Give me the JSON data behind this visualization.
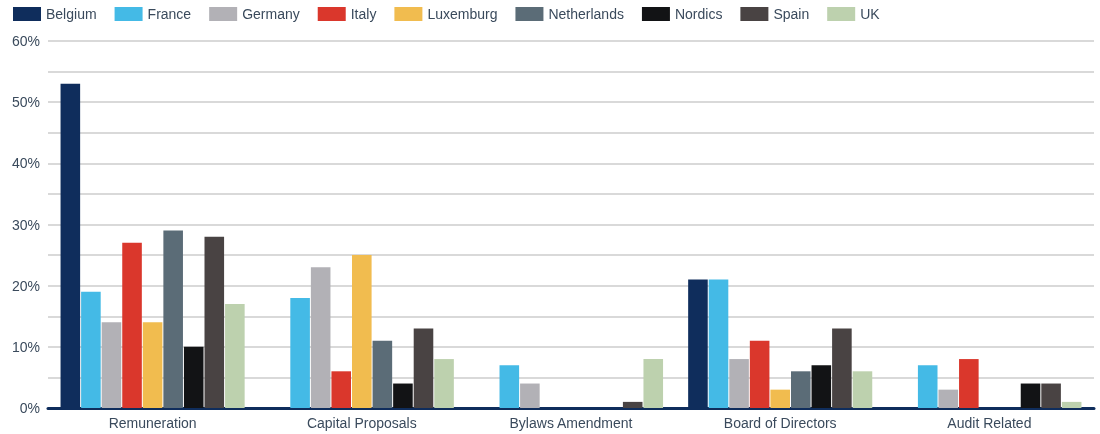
{
  "chart_data": {
    "type": "bar",
    "categories": [
      "Remuneration",
      "Capital Proposals",
      "Bylaws Amendment",
      "Board of Directors",
      "Audit Related"
    ],
    "series": [
      {
        "name": "Belgium",
        "color": "#0f2d5c",
        "values": [
          53,
          null,
          null,
          21,
          null
        ]
      },
      {
        "name": "France",
        "color": "#44bae6",
        "values": [
          19,
          18,
          7,
          21,
          7
        ]
      },
      {
        "name": "Germany",
        "color": "#b2b1b6",
        "values": [
          14,
          23,
          4,
          8,
          3
        ]
      },
      {
        "name": "Italy",
        "color": "#da372c",
        "values": [
          27,
          6,
          null,
          11,
          8
        ]
      },
      {
        "name": "Luxemburg",
        "color": "#f1bc4f",
        "values": [
          14,
          25,
          null,
          3,
          null
        ]
      },
      {
        "name": "Netherlands",
        "color": "#5b6c77",
        "values": [
          29,
          11,
          null,
          6,
          null
        ]
      },
      {
        "name": "Nordics",
        "color": "#121315",
        "values": [
          10,
          4,
          null,
          7,
          4
        ]
      },
      {
        "name": "Spain",
        "color": "#494343",
        "values": [
          28,
          13,
          1,
          13,
          4
        ]
      },
      {
        "name": "UK",
        "color": "#bdd1ae",
        "values": [
          17,
          8,
          8,
          6,
          1
        ]
      }
    ],
    "ylim": [
      0,
      60
    ],
    "yticks": [
      {
        "value": 0,
        "label": "0%"
      },
      {
        "value": 5,
        "label": null
      },
      {
        "value": 10,
        "label": "10%"
      },
      {
        "value": 15,
        "label": null
      },
      {
        "value": 20,
        "label": "20%"
      },
      {
        "value": 25,
        "label": null
      },
      {
        "value": 30,
        "label": "30%"
      },
      {
        "value": 35,
        "label": null
      },
      {
        "value": 40,
        "label": "40%"
      },
      {
        "value": 45,
        "label": null
      },
      {
        "value": 50,
        "label": "50%"
      },
      {
        "value": 55,
        "label": null
      },
      {
        "value": 60,
        "label": "60%"
      }
    ],
    "grid": "y",
    "legend": "top left"
  }
}
